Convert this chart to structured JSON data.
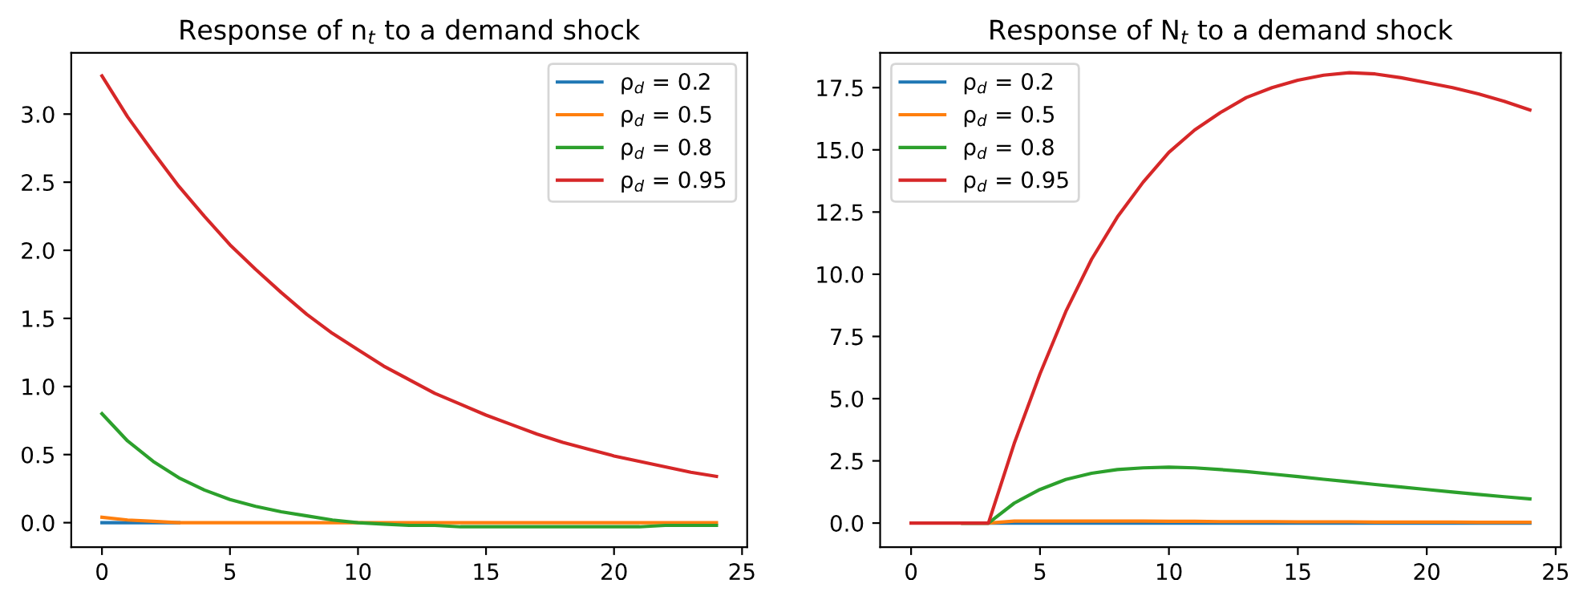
{
  "chart_data": [
    {
      "type": "line",
      "title": "Response of n$_{t}$ to a demand shock",
      "x": [
        0,
        1,
        2,
        3,
        4,
        5,
        6,
        7,
        8,
        9,
        10,
        11,
        12,
        13,
        14,
        15,
        16,
        17,
        18,
        19,
        20,
        21,
        22,
        23,
        24
      ],
      "xlim": [
        -1.2,
        25.2
      ],
      "xticks": [
        0,
        5,
        10,
        15,
        20,
        25
      ],
      "ylim": [
        -0.18,
        3.45
      ],
      "yticks": [
        {
          "value": 0,
          "label": "0.0"
        },
        0.5,
        {
          "value": 1,
          "label": "1.0"
        },
        1.5,
        {
          "value": 2,
          "label": "2.0"
        },
        2.5,
        {
          "value": 3,
          "label": "3.0"
        }
      ],
      "grid": false,
      "legend": "top right",
      "series": [
        {
          "name": "ρ$_{d}$ = 0.2",
          "color": "#1f77b4",
          "values": [
            0,
            0,
            0,
            0,
            null,
            null,
            null,
            null,
            null,
            null,
            null,
            null,
            null,
            null,
            null,
            null,
            null,
            null,
            null,
            null,
            null,
            null,
            null,
            null,
            null
          ]
        },
        {
          "name": "ρ$_{d}$ = 0.5",
          "color": "#ff7f0e",
          "values": [
            0.04,
            0.02,
            0.01,
            0,
            0,
            0,
            0,
            0,
            0,
            0,
            0,
            0,
            0,
            0,
            0,
            0,
            0,
            0,
            0,
            0,
            0,
            0,
            0,
            0,
            0
          ]
        },
        {
          "name": "ρ$_{d}$ = 0.8",
          "color": "#2ca02c",
          "values": [
            0.8,
            0.6,
            0.45,
            0.33,
            0.24,
            0.17,
            0.12,
            0.08,
            0.05,
            0.02,
            0,
            -0.01,
            -0.02,
            -0.02,
            -0.03,
            -0.03,
            -0.03,
            -0.03,
            -0.03,
            -0.03,
            -0.03,
            -0.03,
            -0.02,
            -0.02,
            -0.02
          ]
        },
        {
          "name": "ρ$_{d}$ = 0.95",
          "color": "#d62728",
          "values": [
            3.28,
            2.98,
            2.72,
            2.47,
            2.25,
            2.04,
            1.86,
            1.69,
            1.53,
            1.39,
            1.27,
            1.15,
            1.05,
            0.95,
            0.87,
            0.79,
            0.72,
            0.65,
            0.59,
            0.54,
            0.49,
            0.45,
            0.41,
            0.37,
            0.34
          ]
        }
      ]
    },
    {
      "type": "line",
      "title": "Response of N$_{t}$ to a demand shock",
      "x": [
        0,
        1,
        2,
        3,
        4,
        5,
        6,
        7,
        8,
        9,
        10,
        11,
        12,
        13,
        14,
        15,
        16,
        17,
        18,
        19,
        20,
        21,
        22,
        23,
        24
      ],
      "xlim": [
        -1.2,
        25.2
      ],
      "xticks": [
        0,
        5,
        10,
        15,
        20,
        25
      ],
      "ylim": [
        -0.97,
        18.9
      ],
      "yticks": [
        {
          "value": 0,
          "label": "0.0"
        },
        2.5,
        {
          "value": 5,
          "label": "5.0"
        },
        7.5,
        {
          "value": 10,
          "label": "10.0"
        },
        12.5,
        {
          "value": 15,
          "label": "15.0"
        },
        17.5
      ],
      "grid": false,
      "legend": "top left",
      "series": [
        {
          "name": "ρ$_{d}$ = 0.2",
          "color": "#1f77b4",
          "values": [
            null,
            null,
            0,
            0,
            0,
            0,
            0,
            0,
            0,
            0,
            0,
            0,
            0,
            0,
            0,
            0,
            0,
            0,
            0,
            0,
            0,
            0,
            0,
            0,
            0
          ]
        },
        {
          "name": "ρ$_{d}$ = 0.5",
          "color": "#ff7f0e",
          "values": [
            null,
            null,
            0,
            0,
            0.08,
            0.08,
            0.08,
            0.08,
            0.08,
            0.08,
            0.07,
            0.07,
            0.06,
            0.06,
            0.06,
            0.05,
            0.05,
            0.05,
            0.04,
            0.04,
            0.04,
            0.04,
            0.03,
            0.03,
            0.03
          ]
        },
        {
          "name": "ρ$_{d}$ = 0.8",
          "color": "#2ca02c",
          "values": [
            null,
            null,
            0,
            0,
            0.8,
            1.35,
            1.75,
            2.0,
            2.15,
            2.22,
            2.25,
            2.22,
            2.15,
            2.07,
            1.97,
            1.87,
            1.76,
            1.66,
            1.55,
            1.45,
            1.35,
            1.25,
            1.15,
            1.06,
            0.97
          ]
        },
        {
          "name": "ρ$_{d}$ = 0.95",
          "color": "#d62728",
          "values": [
            0,
            0,
            0,
            0,
            3.2,
            6.0,
            8.5,
            10.6,
            12.3,
            13.7,
            14.9,
            15.8,
            16.5,
            17.1,
            17.5,
            17.8,
            18.0,
            18.1,
            18.05,
            17.9,
            17.7,
            17.5,
            17.25,
            16.95,
            16.6
          ]
        }
      ]
    }
  ]
}
